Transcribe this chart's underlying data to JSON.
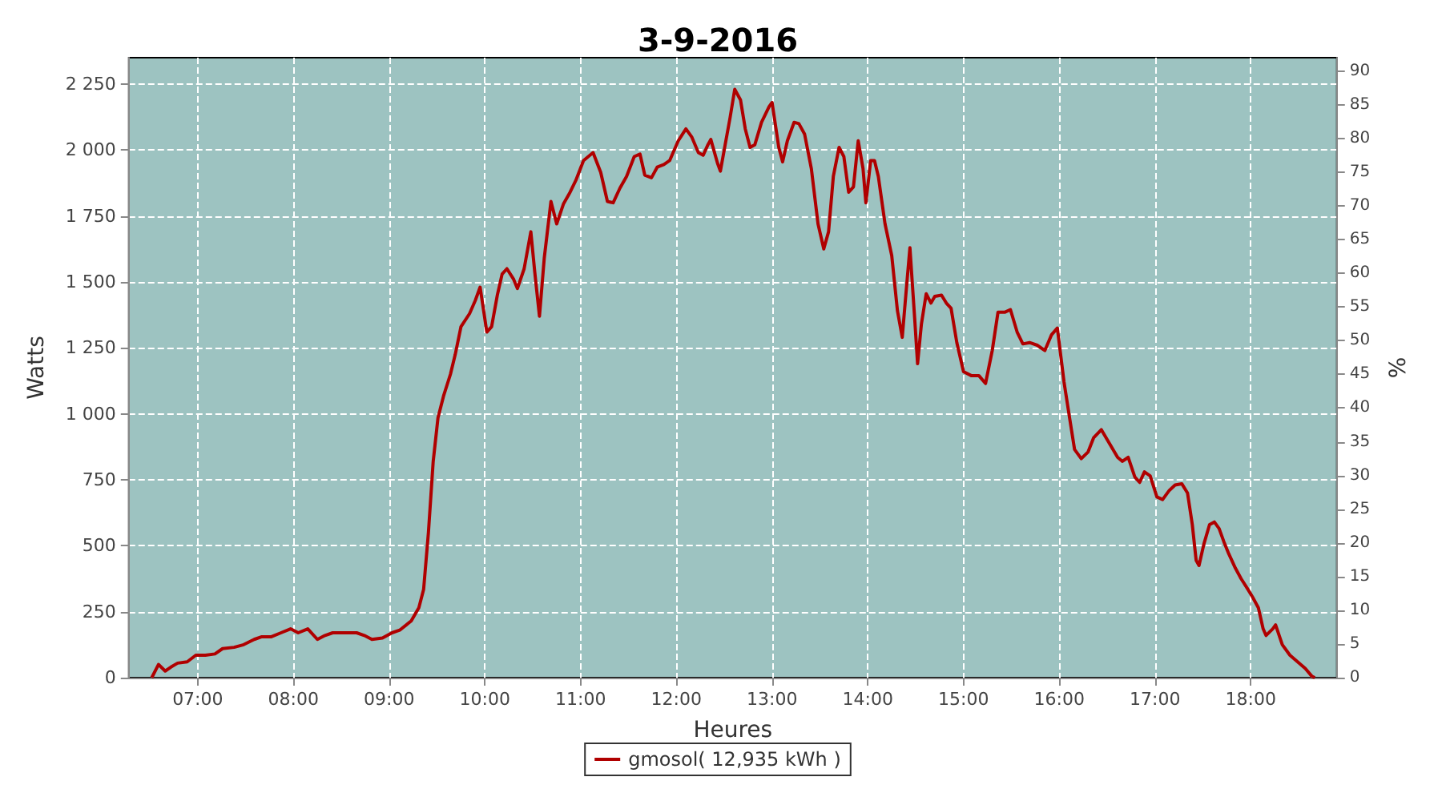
{
  "chart_data": {
    "type": "line",
    "title": "3-9-2016",
    "xlabel": "Heures",
    "ylabel": "Watts",
    "y2label": "%",
    "x": [
      6.52,
      6.59,
      6.66,
      6.72,
      6.79,
      6.89,
      6.98,
      7.08,
      7.18,
      7.26,
      7.38,
      7.48,
      7.59,
      7.67,
      7.77,
      7.87,
      7.97,
      8.05,
      8.15,
      8.25,
      8.33,
      8.41,
      8.66,
      8.74,
      8.82,
      8.93,
      9.03,
      9.11,
      9.23,
      9.31,
      9.36,
      9.41,
      9.46,
      9.51,
      9.57,
      9.64,
      9.69,
      9.75,
      9.84,
      9.9,
      9.95,
      10.02,
      10.07,
      10.13,
      10.18,
      10.23,
      10.3,
      10.34,
      10.41,
      10.48,
      10.52,
      10.57,
      10.62,
      10.69,
      10.75,
      10.82,
      10.89,
      10.95,
      11.03,
      11.13,
      11.21,
      11.28,
      11.34,
      11.41,
      11.48,
      11.56,
      11.62,
      11.67,
      11.74,
      11.8,
      11.87,
      11.93,
      12.02,
      12.1,
      12.16,
      12.23,
      12.28,
      12.33,
      12.36,
      12.43,
      12.46,
      12.51,
      12.56,
      12.61,
      12.67,
      12.72,
      12.77,
      12.82,
      12.89,
      12.97,
      13.0,
      13.07,
      13.11,
      13.16,
      13.23,
      13.28,
      13.34,
      13.41,
      13.48,
      13.54,
      13.59,
      13.64,
      13.7,
      13.75,
      13.8,
      13.85,
      13.9,
      13.95,
      13.98,
      14.03,
      14.07,
      14.11,
      14.18,
      14.25,
      14.31,
      14.36,
      14.39,
      14.44,
      14.49,
      14.52,
      14.56,
      14.61,
      14.66,
      14.7,
      14.77,
      14.82,
      14.87,
      14.93,
      15.0,
      15.08,
      15.16,
      15.23,
      15.3,
      15.36,
      15.43,
      15.49,
      15.56,
      15.62,
      15.69,
      15.77,
      15.85,
      15.92,
      15.98,
      16.05,
      16.11,
      16.16,
      16.23,
      16.3,
      16.36,
      16.44,
      16.52,
      16.61,
      16.66,
      16.72,
      16.79,
      16.84,
      16.89,
      16.95,
      17.02,
      17.08,
      17.15,
      17.21,
      17.28,
      17.34,
      17.39,
      17.43,
      17.46,
      17.51,
      17.57,
      17.62,
      17.67,
      17.72,
      17.77,
      17.84,
      17.9,
      17.97,
      18.02,
      18.08,
      18.13,
      18.16,
      18.23,
      18.26,
      18.33,
      18.41,
      18.49,
      18.57,
      18.64,
      18.67
    ],
    "series": [
      {
        "name": "gmosol( 12,935 kWh )",
        "color": "#b00000",
        "values": [
          0,
          50,
          25,
          40,
          55,
          60,
          85,
          85,
          90,
          110,
          115,
          125,
          145,
          155,
          155,
          170,
          185,
          170,
          185,
          145,
          160,
          170,
          170,
          160,
          145,
          150,
          170,
          180,
          215,
          265,
          335,
          550,
          820,
          985,
          1070,
          1150,
          1225,
          1330,
          1380,
          1430,
          1480,
          1310,
          1330,
          1450,
          1530,
          1550,
          1510,
          1475,
          1550,
          1690,
          1540,
          1370,
          1590,
          1805,
          1720,
          1795,
          1840,
          1885,
          1960,
          1990,
          1915,
          1805,
          1800,
          1855,
          1900,
          1975,
          1985,
          1905,
          1895,
          1935,
          1945,
          1960,
          2035,
          2080,
          2050,
          1990,
          1980,
          2020,
          2040,
          1950,
          1920,
          2020,
          2120,
          2230,
          2190,
          2080,
          2010,
          2020,
          2105,
          2165,
          2180,
          2010,
          1955,
          2035,
          2105,
          2100,
          2060,
          1930,
          1720,
          1625,
          1690,
          1900,
          2010,
          1975,
          1840,
          1860,
          2035,
          1930,
          1800,
          1960,
          1960,
          1900,
          1720,
          1600,
          1390,
          1290,
          1420,
          1630,
          1360,
          1190,
          1340,
          1455,
          1420,
          1445,
          1450,
          1420,
          1400,
          1270,
          1160,
          1145,
          1145,
          1115,
          1240,
          1385,
          1385,
          1395,
          1310,
          1265,
          1270,
          1260,
          1240,
          1300,
          1325,
          1120,
          980,
          865,
          830,
          855,
          910,
          940,
          890,
          835,
          820,
          835,
          760,
          740,
          780,
          765,
          685,
          675,
          710,
          730,
          735,
          700,
          580,
          445,
          425,
          505,
          580,
          590,
          565,
          515,
          470,
          415,
          375,
          335,
          305,
          265,
          185,
          160,
          185,
          200,
          125,
          85,
          60,
          35,
          5,
          0
        ]
      }
    ],
    "xlim": [
      6.28,
      18.9
    ],
    "xticks": [
      {
        "value": 7,
        "label": "07:00"
      },
      {
        "value": 8,
        "label": "08:00"
      },
      {
        "value": 9,
        "label": "09:00"
      },
      {
        "value": 10,
        "label": "10:00"
      },
      {
        "value": 11,
        "label": "11:00"
      },
      {
        "value": 12,
        "label": "12:00"
      },
      {
        "value": 13,
        "label": "13:00"
      },
      {
        "value": 14,
        "label": "14:00"
      },
      {
        "value": 15,
        "label": "15:00"
      },
      {
        "value": 16,
        "label": "16:00"
      },
      {
        "value": 17,
        "label": "17:00"
      },
      {
        "value": 18,
        "label": "18:00"
      }
    ],
    "ylim": [
      0,
      2350
    ],
    "yticks": [
      0,
      250,
      500,
      750,
      {
        "value": 1000,
        "label": "1 000"
      },
      {
        "value": 1250,
        "label": "1 250"
      },
      {
        "value": 1500,
        "label": "1 500"
      },
      {
        "value": 1750,
        "label": "1 750"
      },
      {
        "value": 2000,
        "label": "2 000"
      },
      {
        "value": 2250,
        "label": "2 250"
      }
    ],
    "y2lim": [
      0,
      92
    ],
    "y2ticks": [
      0,
      5,
      10,
      15,
      20,
      25,
      30,
      35,
      40,
      45,
      50,
      55,
      60,
      65,
      70,
      75,
      80,
      85,
      90
    ],
    "grid": true,
    "legend": "bottom",
    "marker": "none",
    "line_style": "solid"
  }
}
